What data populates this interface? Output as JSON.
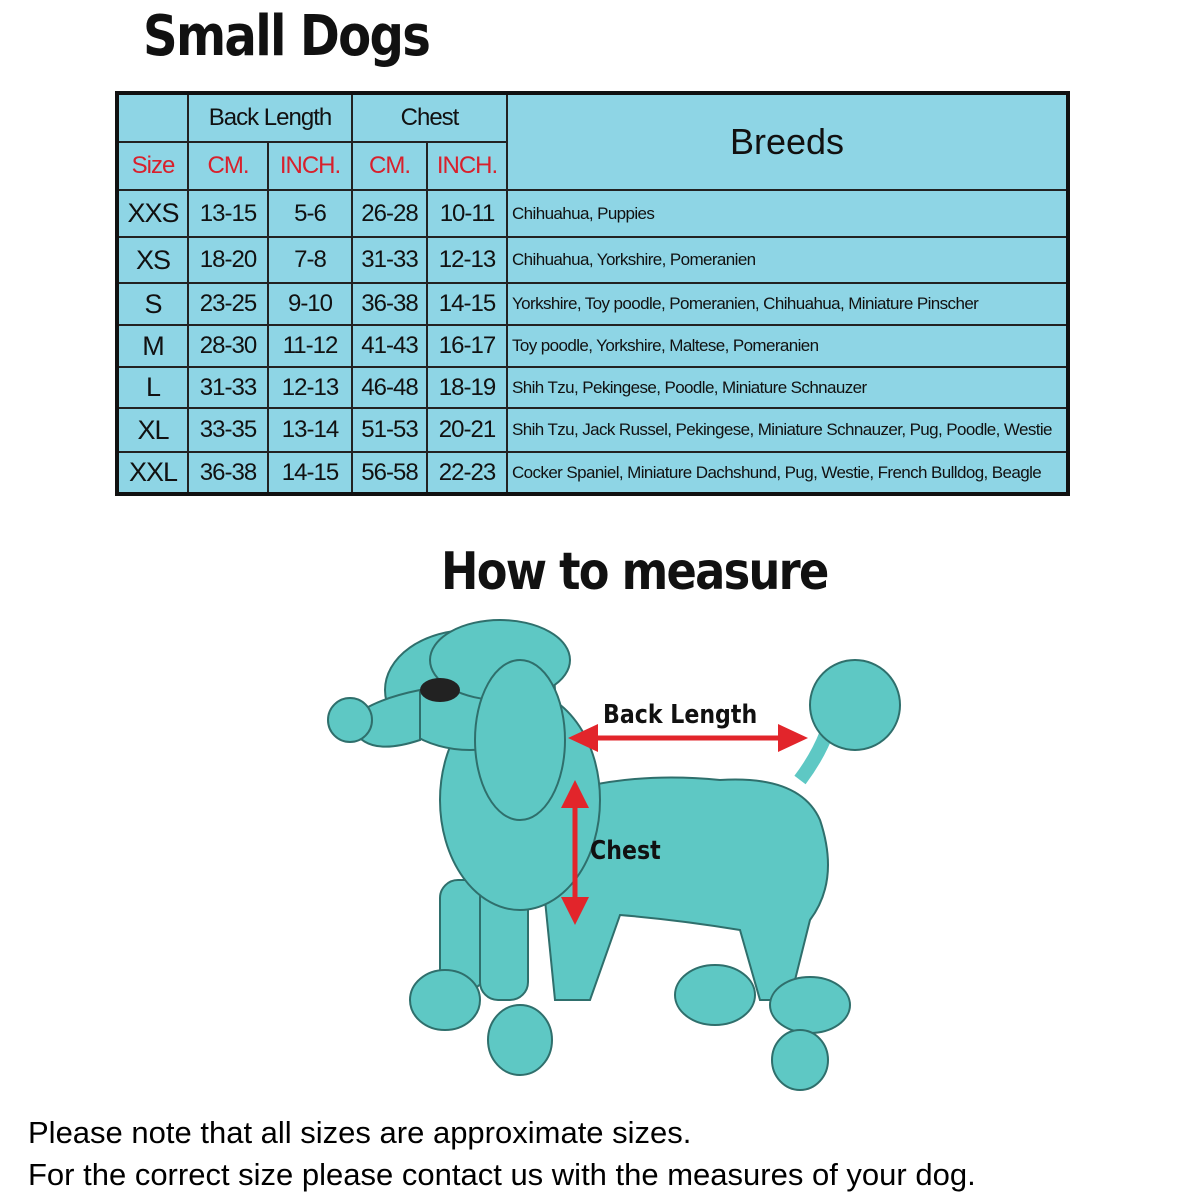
{
  "title": "Small Dogs",
  "table": {
    "group_headers": {
      "back_length": "Back Length",
      "chest": "Chest",
      "breeds": "Breeds"
    },
    "sub_headers": {
      "size": "Size",
      "back_cm": "CM.",
      "back_inch": "INCH.",
      "chest_cm": "CM.",
      "chest_inch": "INCH."
    },
    "rows": [
      {
        "size": "XXS",
        "back_cm": "13-15",
        "back_inch": "5-6",
        "chest_cm": "26-28",
        "chest_inch": "10-11",
        "breeds": "Chihuahua, Puppies"
      },
      {
        "size": "XS",
        "back_cm": "18-20",
        "back_inch": "7-8",
        "chest_cm": "31-33",
        "chest_inch": "12-13",
        "breeds": "Chihuahua, Yorkshire, Pomeranien"
      },
      {
        "size": "S",
        "back_cm": "23-25",
        "back_inch": "9-10",
        "chest_cm": "36-38",
        "chest_inch": "14-15",
        "breeds": "Yorkshire, Toy poodle, Pomeranien, Chihuahua, Miniature Pinscher"
      },
      {
        "size": "M",
        "back_cm": "28-30",
        "back_inch": "11-12",
        "chest_cm": "41-43",
        "chest_inch": "16-17",
        "breeds": "Toy poodle, Yorkshire, Maltese, Pomeranien"
      },
      {
        "size": "L",
        "back_cm": "31-33",
        "back_inch": "12-13",
        "chest_cm": "46-48",
        "chest_inch": "18-19",
        "breeds": "Shih Tzu, Pekingese, Poodle, Miniature Schnauzer"
      },
      {
        "size": "XL",
        "back_cm": "33-35",
        "back_inch": "13-14",
        "chest_cm": "51-53",
        "chest_inch": "20-21",
        "breeds": "Shih Tzu, Jack Russel, Pekingese, Miniature Schnauzer, Pug, Poodle, Westie"
      },
      {
        "size": "XXL",
        "back_cm": "36-38",
        "back_inch": "14-15",
        "chest_cm": "56-58",
        "chest_inch": "22-23",
        "breeds": "Cocker Spaniel, Miniature Dachshund, Pug, Westie, French Bulldog, Beagle"
      }
    ]
  },
  "measure": {
    "title": "How to measure",
    "back_length_label": "Back Length",
    "chest_label": "Chest"
  },
  "notes": [
    "Please note that all sizes are approximate sizes.",
    "For the correct size please contact us with the measures of your dog."
  ],
  "colors": {
    "cell": "#8ed5e5",
    "header_red": "#d8202c",
    "dog": "#5ec8c4",
    "arrow": "#e2252b"
  }
}
